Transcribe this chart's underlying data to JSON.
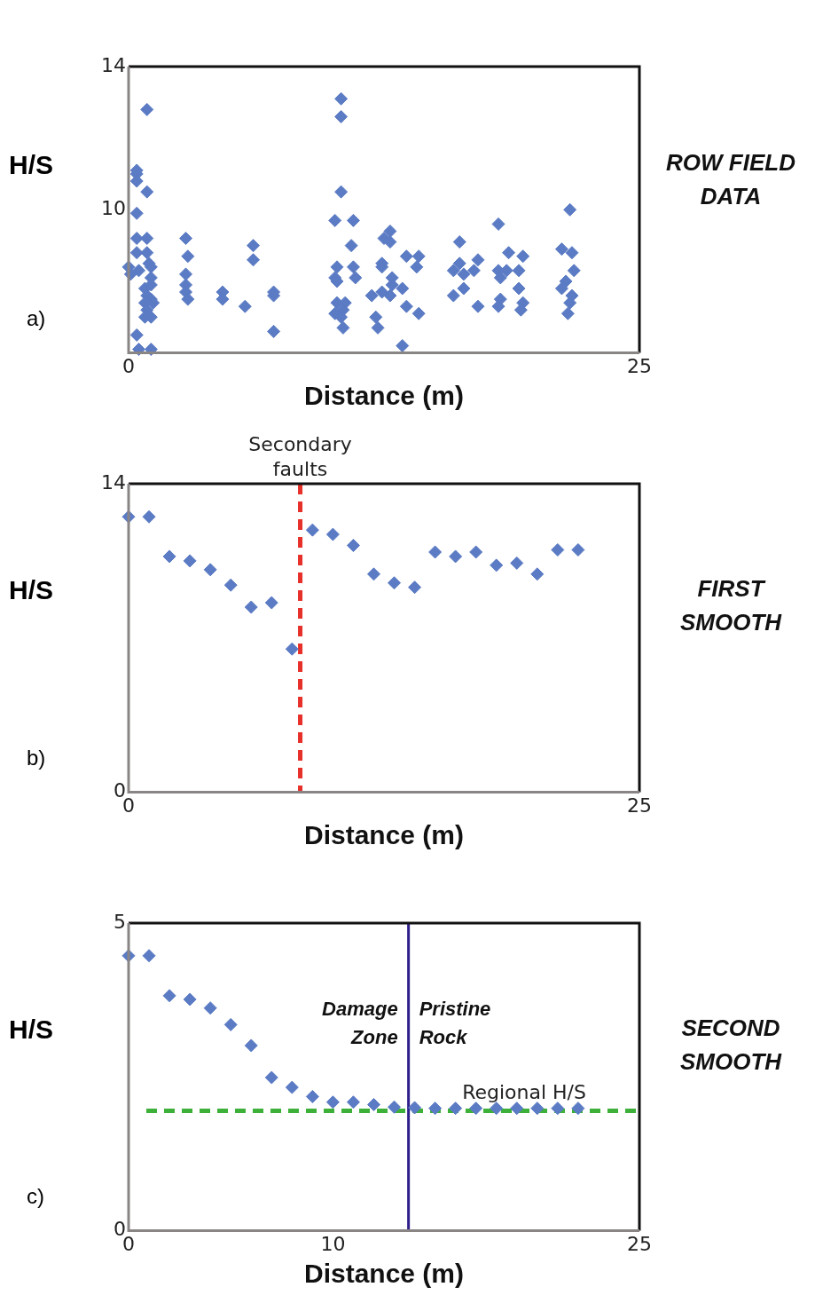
{
  "chart_data": [
    {
      "type": "scatter",
      "annotations": [
        "ROW FIELD DATA"
      ],
      "subtitle": "a)",
      "xlabel": "Distance (m)",
      "ylabel": "H/S",
      "xlim": [
        0,
        25
      ],
      "xticks": [
        0,
        25
      ],
      "ylim": [
        6,
        14
      ],
      "yticks": [
        10,
        14
      ],
      "marker": "diamond",
      "grid": false,
      "legend": false,
      "series": [
        {
          "color": "#5b7bc4",
          "x": [
            0.9,
            0.4,
            0.4,
            0.4,
            0.9,
            0.4,
            0.4,
            0.9,
            0.4,
            0.9,
            0.0,
            0.5,
            1.0,
            1.1,
            0.1,
            1.1,
            0.8,
            1.1,
            0.9,
            1.1,
            0.8,
            1.2,
            0.9,
            0.8,
            1.1,
            0.4,
            0.5,
            1.1,
            2.8,
            2.9,
            2.8,
            2.8,
            2.8,
            2.9,
            4.6,
            4.6,
            5.7,
            6.1,
            6.1,
            7.1,
            7.1,
            7.1,
            10.4,
            10.4,
            10.4,
            10.1,
            11.0,
            10.9,
            10.2,
            11.0,
            10.1,
            10.2,
            11.1,
            10.2,
            10.6,
            10.1,
            10.5,
            10.4,
            10.5,
            12.1,
            12.2,
            12.8,
            12.5,
            12.8,
            12.4,
            12.4,
            12.9,
            12.9,
            13.4,
            11.9,
            12.4,
            12.8,
            13.6,
            14.2,
            13.4,
            13.6,
            14.2,
            14.1,
            16.2,
            16.2,
            15.9,
            16.4,
            16.9,
            17.1,
            16.4,
            15.9,
            17.1,
            18.1,
            18.6,
            19.3,
            18.1,
            18.5,
            19.1,
            18.2,
            19.1,
            18.2,
            18.1,
            19.3,
            19.2,
            21.6,
            21.2,
            21.7,
            21.8,
            21.4,
            21.2,
            21.7,
            21.6,
            21.5
          ],
          "values": [
            12.8,
            11.1,
            11.0,
            10.8,
            10.5,
            9.9,
            9.2,
            9.2,
            8.8,
            8.8,
            8.4,
            8.3,
            8.5,
            8.4,
            8.2,
            8.1,
            7.8,
            7.9,
            7.6,
            7.5,
            7.4,
            7.4,
            7.2,
            7.0,
            7.0,
            6.5,
            6.1,
            6.1,
            9.2,
            8.7,
            8.2,
            7.9,
            7.7,
            7.5,
            7.7,
            7.5,
            7.3,
            9.0,
            8.6,
            7.7,
            7.6,
            6.6,
            13.1,
            12.6,
            10.5,
            9.7,
            9.7,
            9.0,
            8.4,
            8.4,
            8.1,
            8.0,
            8.1,
            7.4,
            7.4,
            7.1,
            7.2,
            7.0,
            6.7,
            7.0,
            6.7,
            9.4,
            9.2,
            9.1,
            8.5,
            8.4,
            8.1,
            7.9,
            7.8,
            7.6,
            7.7,
            7.6,
            7.3,
            7.1,
            6.2,
            8.7,
            8.7,
            8.4,
            9.1,
            8.5,
            8.3,
            8.2,
            8.3,
            8.6,
            7.8,
            7.6,
            7.3,
            9.6,
            8.8,
            8.7,
            8.3,
            8.3,
            8.3,
            8.1,
            7.8,
            7.5,
            7.3,
            7.4,
            7.2,
            10.0,
            8.9,
            8.8,
            8.3,
            8.0,
            7.8,
            7.6,
            7.4,
            7.1
          ]
        }
      ]
    },
    {
      "type": "scatter",
      "annotations": [
        "FIRST SMOOTH"
      ],
      "subtitle": "b)",
      "xlabel": "Distance (m)",
      "ylabel": "H/S",
      "xlim": [
        0,
        25
      ],
      "xticks": [
        0,
        25
      ],
      "ylim": [
        0,
        14
      ],
      "yticks": [
        0,
        14
      ],
      "marker": "diamond",
      "grid": false,
      "legend": false,
      "ref_lines": [
        {
          "axis": "x",
          "value": 8.4,
          "label": "Secondary faults",
          "color": "#e8302a",
          "line_style": "dashed"
        }
      ],
      "series": [
        {
          "color": "#5b7bc4",
          "x": [
            0,
            1,
            2,
            3,
            4,
            5,
            6,
            7,
            8,
            9,
            10,
            11,
            12,
            13,
            14,
            15,
            16,
            17,
            18,
            19,
            20,
            21,
            22
          ],
          "values": [
            12.5,
            12.5,
            10.7,
            10.5,
            10.1,
            9.4,
            8.4,
            8.6,
            6.5,
            11.9,
            11.7,
            11.2,
            9.9,
            9.5,
            9.3,
            10.9,
            10.7,
            10.9,
            10.3,
            10.4,
            9.9,
            11.0,
            11.0
          ]
        }
      ]
    },
    {
      "type": "scatter",
      "subtitle": "c)",
      "xlabel": "Distance (m)",
      "ylabel": "H/S",
      "xlim": [
        0,
        25
      ],
      "xticks": [
        0,
        10,
        25
      ],
      "ylim": [
        0,
        5
      ],
      "yticks": [
        0,
        5
      ],
      "marker": "diamond",
      "grid": false,
      "legend": false,
      "ref_lines": [
        {
          "axis": "x",
          "value": 13.7,
          "color": "#2e1f8a",
          "line_style": "solid"
        },
        {
          "axis": "y",
          "value": 1.95,
          "label": "Regional H/S",
          "color": "#3db03a",
          "line_style": "dashed"
        }
      ],
      "annotations": [
        "SECOND SMOOTH",
        "Damage Zone",
        "Pristine Rock"
      ],
      "series": [
        {
          "color": "#5b7bc4",
          "x": [
            0,
            1,
            2,
            3,
            4,
            5,
            6,
            7,
            8,
            9,
            10,
            11,
            12,
            13,
            14,
            15,
            16,
            17,
            18,
            19,
            20,
            21,
            22
          ],
          "values": [
            4.47,
            4.47,
            3.82,
            3.76,
            3.62,
            3.35,
            3.01,
            2.49,
            2.33,
            2.18,
            2.09,
            2.09,
            2.05,
            2.01,
            2.0,
            1.99,
            1.99,
            1.99,
            1.99,
            1.99,
            1.99,
            1.99,
            1.99
          ]
        }
      ]
    }
  ]
}
